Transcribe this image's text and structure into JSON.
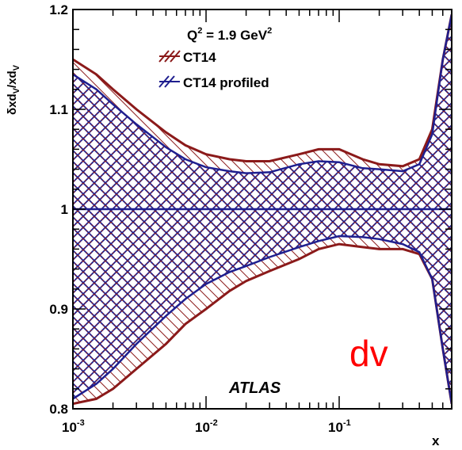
{
  "chart_data": {
    "type": "area",
    "xscale": "log",
    "xlim": [
      0.001,
      0.7
    ],
    "ylim": [
      0.8,
      1.2
    ],
    "xlabel": "x",
    "ylabel": "δxd_V/xd_V",
    "x_tick_labels": [
      {
        "value": 0.001,
        "base": "10",
        "exp": "-3"
      },
      {
        "value": 0.01,
        "base": "10",
        "exp": "-2"
      },
      {
        "value": 0.1,
        "base": "10",
        "exp": "-1"
      }
    ],
    "y_tick_labels": [
      {
        "value": 0.8,
        "label": "0.8"
      },
      {
        "value": 0.9,
        "label": "0.9"
      },
      {
        "value": 1.0,
        "label": "1"
      },
      {
        "value": 1.1,
        "label": "1.1"
      },
      {
        "value": 1.2,
        "label": "1.2"
      }
    ],
    "annotation": {
      "prefix": "Q",
      "sup1": "2",
      "middle": " = 1.9 GeV",
      "sup2": "2"
    },
    "experiment_label": "ATLAS",
    "corner_label": "dv",
    "colors": {
      "ct14": "#8b1a1a",
      "profiled": "#1f1f8f",
      "central": "#1f1f8f"
    },
    "series": [
      {
        "name": "CT14",
        "x": [
          0.001,
          0.0015,
          0.002,
          0.003,
          0.005,
          0.007,
          0.01,
          0.015,
          0.02,
          0.03,
          0.05,
          0.07,
          0.1,
          0.15,
          0.2,
          0.3,
          0.4,
          0.5,
          0.6,
          0.7
        ],
        "upper": [
          1.15,
          1.135,
          1.12,
          1.1,
          1.077,
          1.064,
          1.055,
          1.05,
          1.048,
          1.048,
          1.055,
          1.06,
          1.06,
          1.05,
          1.045,
          1.043,
          1.05,
          1.08,
          1.15,
          1.195
        ],
        "lower": [
          0.805,
          0.81,
          0.82,
          0.84,
          0.865,
          0.885,
          0.9,
          0.918,
          0.928,
          0.938,
          0.95,
          0.96,
          0.965,
          0.962,
          0.96,
          0.96,
          0.955,
          0.93,
          0.86,
          0.805
        ]
      },
      {
        "name": "CT14 profiled",
        "x": [
          0.001,
          0.0015,
          0.002,
          0.003,
          0.005,
          0.007,
          0.01,
          0.015,
          0.02,
          0.03,
          0.05,
          0.07,
          0.1,
          0.15,
          0.2,
          0.3,
          0.4,
          0.5,
          0.6,
          0.7
        ],
        "upper": [
          1.135,
          1.12,
          1.105,
          1.085,
          1.062,
          1.05,
          1.042,
          1.038,
          1.036,
          1.037,
          1.045,
          1.048,
          1.047,
          1.041,
          1.04,
          1.038,
          1.045,
          1.075,
          1.15,
          1.195
        ],
        "lower": [
          0.81,
          0.825,
          0.84,
          0.865,
          0.893,
          0.91,
          0.925,
          0.937,
          0.943,
          0.952,
          0.962,
          0.968,
          0.973,
          0.972,
          0.97,
          0.965,
          0.957,
          0.93,
          0.86,
          0.805
        ]
      }
    ],
    "central_value": 1.0
  }
}
